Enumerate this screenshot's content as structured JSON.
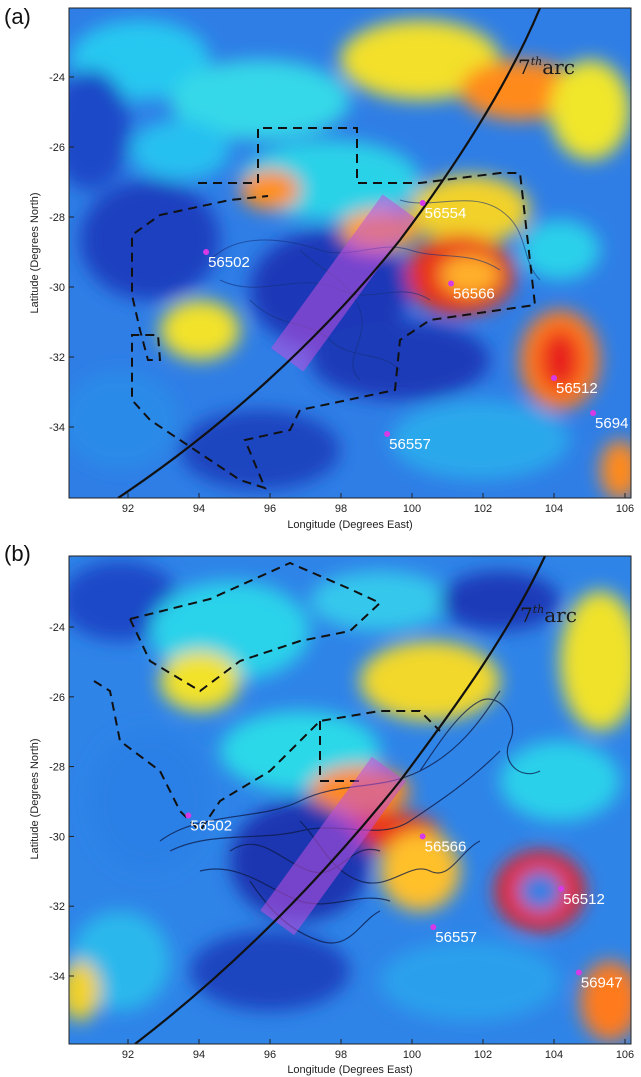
{
  "panels": [
    {
      "label": "(a)",
      "xlabel": "Longitude (Degrees East)",
      "ylabel": "Latitude (Degrees North)",
      "xticks": [
        "92",
        "94",
        "96",
        "98",
        "100",
        "102",
        "104",
        "106"
      ],
      "yticks": [
        "-24",
        "-26",
        "-28",
        "-30",
        "-32",
        "-34"
      ],
      "arc_label_main": "7",
      "arc_label_sup": "th",
      "arc_label_rest": "arc",
      "drifters": [
        {
          "id": "56554",
          "lon": 100.3,
          "lat": -27.6
        },
        {
          "id": "56502",
          "lon": 94.2,
          "lat": -29.0
        },
        {
          "id": "56566",
          "lon": 101.1,
          "lat": -29.9
        },
        {
          "id": "56512",
          "lon": 104.0,
          "lat": -32.6
        },
        {
          "id": "5694",
          "lon": 105.1,
          "lat": -33.6
        },
        {
          "id": "56557",
          "lon": 99.3,
          "lat": -34.2
        }
      ]
    },
    {
      "label": "(b)",
      "xlabel": "Longitude (Degrees East)",
      "ylabel": "Latitude (Degrees North)",
      "xticks": [
        "92",
        "94",
        "96",
        "98",
        "100",
        "102",
        "104",
        "106"
      ],
      "yticks": [
        "-24",
        "-26",
        "-28",
        "-30",
        "-32",
        "-34"
      ],
      "arc_label_main": "7",
      "arc_label_sup": "th",
      "arc_label_rest": "arc",
      "drifters": [
        {
          "id": "56502",
          "lon": 93.7,
          "lat": -29.4
        },
        {
          "id": "56566",
          "lon": 100.3,
          "lat": -30.0
        },
        {
          "id": "56512",
          "lon": 104.2,
          "lat": -31.5
        },
        {
          "id": "56557",
          "lon": 100.6,
          "lat": -32.6
        },
        {
          "id": "56947",
          "lon": 104.7,
          "lat": -33.9
        }
      ]
    }
  ],
  "colors": {
    "ocean_base": "#2a73e8",
    "deep": "#1533b8",
    "cyan": "#27d6f0",
    "yellow": "#f2e82a",
    "orange": "#ff8c1a",
    "red": "#e8201a",
    "drifter": "#d63ae6",
    "search_box": "#c050e0"
  }
}
